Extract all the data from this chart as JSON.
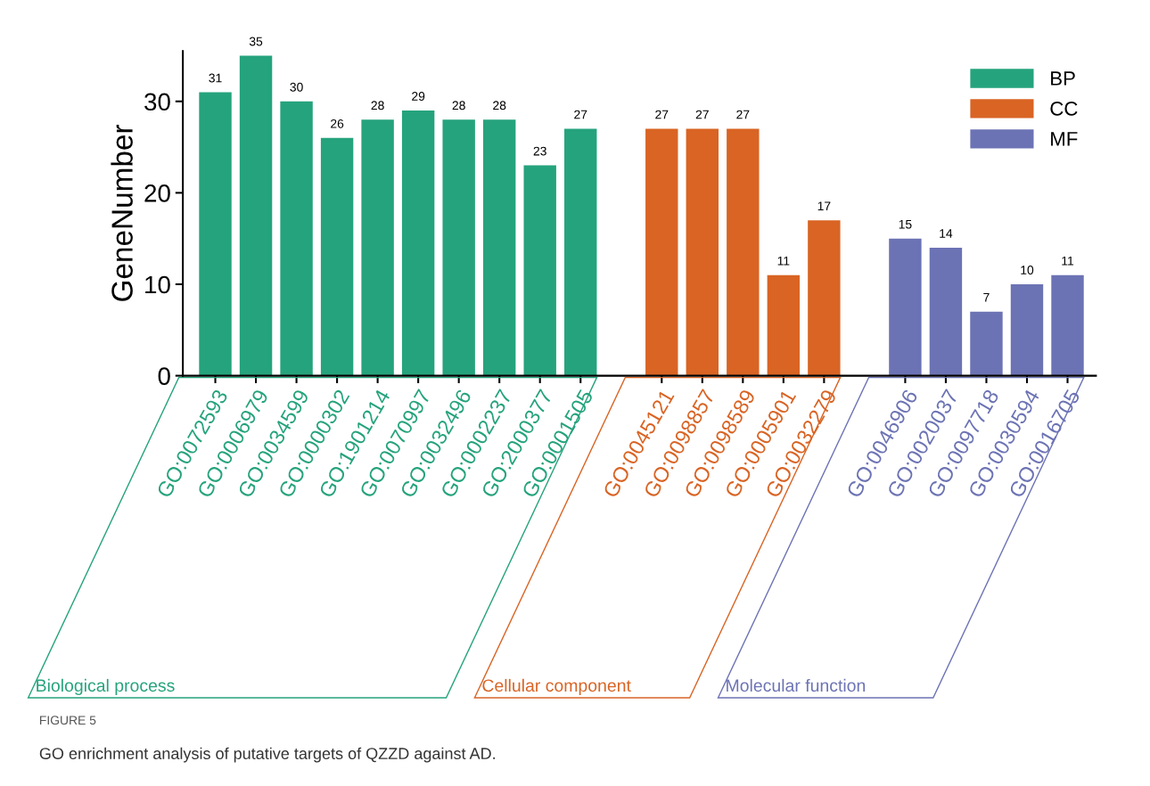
{
  "chart_data": {
    "type": "bar",
    "title": "FIGURE 5",
    "subtitle": "GO enrichment analysis of putative targets of QZZD against AD.",
    "ylabel": "GeneNumber",
    "categories": [
      "GO:0072593",
      "GO:0006979",
      "GO:0034599",
      "GO:0000302",
      "GO:1901214",
      "GO:0070997",
      "GO:0032496",
      "GO:0002237",
      "GO:2000377",
      "GO:0001505",
      null,
      "GO:0045121",
      "GO:0098857",
      "GO:0098589",
      "GO:0005901",
      "GO:0032279",
      null,
      "GO:0046906",
      "GO:0020037",
      "GO:0097718",
      "GO:0030594",
      "GO:0016705"
    ],
    "series": [
      {
        "name": "BP",
        "color": "#25a37c",
        "values": [
          31,
          35,
          30,
          26,
          28,
          29,
          28,
          28,
          23,
          27,
          null,
          null,
          null,
          null,
          null,
          null,
          null,
          null,
          null,
          null,
          null,
          null
        ]
      },
      {
        "name": "CC",
        "color": "#d96424",
        "values": [
          null,
          null,
          null,
          null,
          null,
          null,
          null,
          null,
          null,
          null,
          null,
          27,
          27,
          27,
          11,
          17,
          null,
          null,
          null,
          null,
          null,
          null
        ]
      },
      {
        "name": "MF",
        "color": "#6c73b4",
        "values": [
          null,
          null,
          null,
          null,
          null,
          null,
          null,
          null,
          null,
          null,
          null,
          null,
          null,
          null,
          null,
          null,
          null,
          15,
          14,
          7,
          10,
          11
        ]
      }
    ],
    "annotations": [
      "Biological process",
      "Cellular component",
      "Molecular function"
    ],
    "ylim": [
      0,
      35.5
    ],
    "yticks": [
      0,
      10,
      20,
      30
    ],
    "data_labels": true,
    "legend": "top right",
    "grid": false
  }
}
